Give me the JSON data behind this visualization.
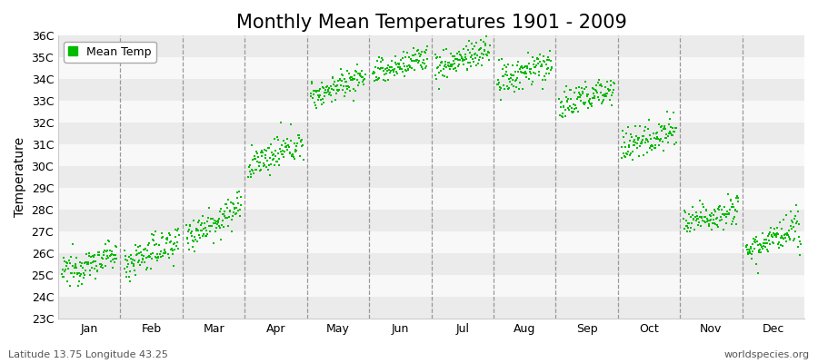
{
  "title": "Monthly Mean Temperatures 1901 - 2009",
  "ylabel": "Temperature",
  "xlabel_bottom_left": "Latitude 13.75 Longitude 43.25",
  "xlabel_bottom_right": "worldspecies.org",
  "legend_label": "Mean Temp",
  "marker_color": "#00BB00",
  "marker_size": 4,
  "ylim": [
    23,
    36
  ],
  "ytick_labels": [
    "23C",
    "24C",
    "25C",
    "26C",
    "27C",
    "28C",
    "29C",
    "30C",
    "31C",
    "32C",
    "33C",
    "34C",
    "35C",
    "36C"
  ],
  "ytick_values": [
    23,
    24,
    25,
    26,
    27,
    28,
    29,
    30,
    31,
    32,
    33,
    34,
    35,
    36
  ],
  "month_names": [
    "Jan",
    "Feb",
    "Mar",
    "Apr",
    "May",
    "Jun",
    "Jul",
    "Aug",
    "Sep",
    "Oct",
    "Nov",
    "Dec"
  ],
  "month_centers": [
    0.5,
    1.5,
    2.5,
    3.5,
    4.5,
    5.5,
    6.5,
    7.5,
    8.5,
    9.5,
    10.5,
    11.5
  ],
  "month_boundaries": [
    0,
    1,
    2,
    3,
    4,
    5,
    6,
    7,
    8,
    9,
    10,
    11,
    12
  ],
  "background_colors": [
    "#ebebeb",
    "#f8f8f8"
  ],
  "title_fontsize": 15,
  "axis_fontsize": 10,
  "tick_fontsize": 9,
  "n_years": 109,
  "year_start": 1901,
  "year_end": 2009,
  "monthly_base_temps": [
    25.1,
    25.5,
    26.8,
    30.0,
    33.2,
    34.2,
    34.5,
    33.8,
    32.7,
    30.8,
    27.3,
    26.2
  ],
  "monthly_trend": [
    0.008,
    0.01,
    0.012,
    0.01,
    0.009,
    0.008,
    0.008,
    0.009,
    0.009,
    0.009,
    0.008,
    0.008
  ],
  "monthly_noise": [
    0.35,
    0.4,
    0.38,
    0.35,
    0.32,
    0.32,
    0.35,
    0.4,
    0.38,
    0.38,
    0.35,
    0.38
  ]
}
